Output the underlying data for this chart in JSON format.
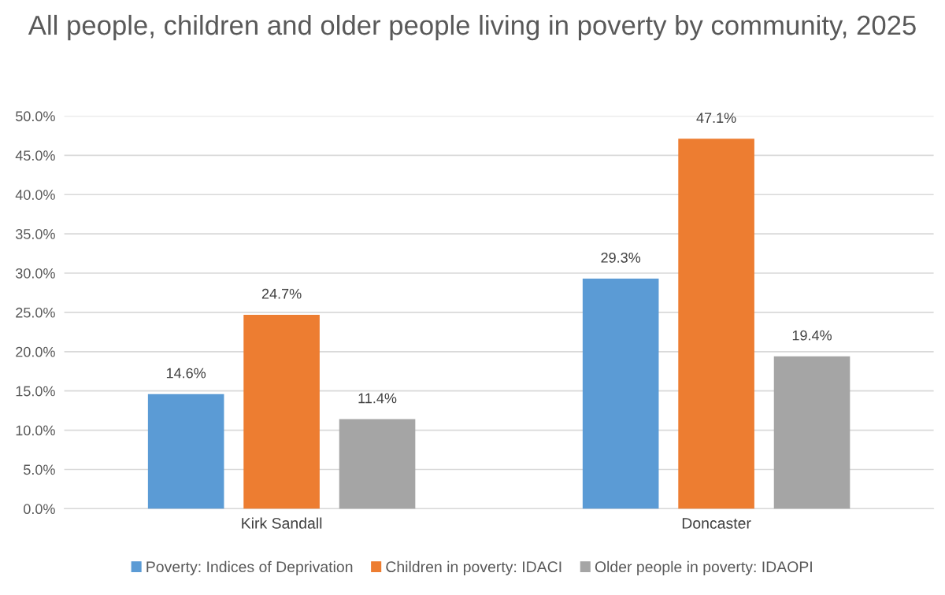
{
  "chart_data": {
    "type": "bar",
    "title": "All people, children and older people living in poverty by community, 2025",
    "categories": [
      "Kirk Sandall",
      "Doncaster"
    ],
    "series": [
      {
        "name": "Poverty: Indices of Deprivation",
        "color": "#5b9bd5",
        "values": [
          14.6,
          29.3
        ],
        "value_labels": [
          "14.6%",
          "29.3%"
        ]
      },
      {
        "name": "Children in poverty: IDACI",
        "color": "#ed7d31",
        "values": [
          24.7,
          47.1
        ],
        "value_labels": [
          "24.7%",
          "47.1%"
        ]
      },
      {
        "name": "Older people in poverty: IDAOPI",
        "color": "#a5a5a5",
        "values": [
          11.4,
          19.4
        ],
        "value_labels": [
          "11.4%",
          "19.4%"
        ]
      }
    ],
    "ylim": [
      0,
      50
    ],
    "yticks": [
      {
        "value": 0,
        "label": "0.0%"
      },
      {
        "value": 5,
        "label": "5.0%"
      },
      {
        "value": 10,
        "label": "10.0%"
      },
      {
        "value": 15,
        "label": "15.0%"
      },
      {
        "value": 20,
        "label": "20.0%"
      },
      {
        "value": 25,
        "label": "25.0%"
      },
      {
        "value": 30,
        "label": "30.0%"
      },
      {
        "value": 35,
        "label": "35.0%"
      },
      {
        "value": 40,
        "label": "40.0%"
      },
      {
        "value": 45,
        "label": "45.0%"
      },
      {
        "value": 50,
        "label": "50.0%"
      }
    ],
    "grid": "y",
    "legend": "bottom"
  }
}
